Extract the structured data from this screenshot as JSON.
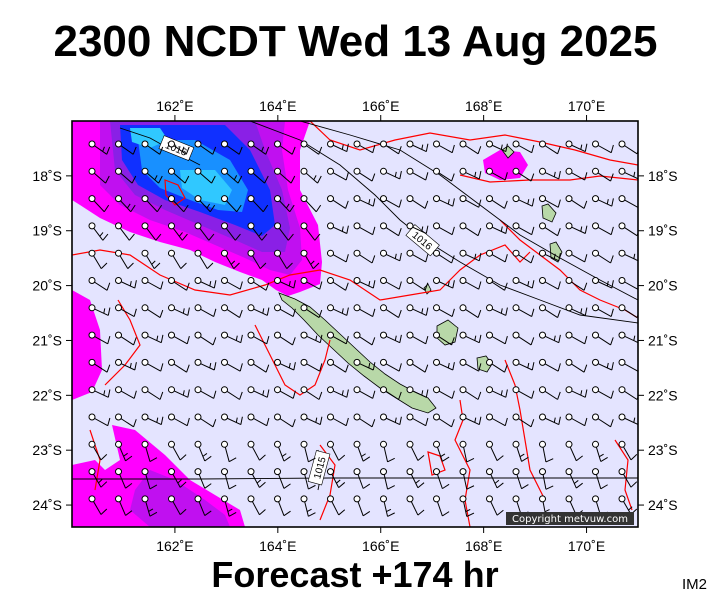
{
  "header": {
    "title": "2300 NCDT Wed 13 Aug 2025"
  },
  "footer": {
    "forecast": "Forecast +174 hr",
    "image_id": "IM2",
    "copyright": "Copyright metvuw.com"
  },
  "map": {
    "lon_range": [
      160.0,
      171.0
    ],
    "lat_range": [
      -24.4,
      -17.0
    ],
    "lon_ticks": [
      162,
      164,
      166,
      168,
      170
    ],
    "lat_ticks": [
      -18,
      -19,
      -20,
      -21,
      -22,
      -23,
      -24
    ],
    "lon_tick_labels": [
      "162˚E",
      "164˚E",
      "166˚E",
      "168˚E",
      "170˚E"
    ],
    "lat_tick_labels": [
      "18˚S",
      "19˚S",
      "20˚S",
      "21˚S",
      "22˚S",
      "23˚S",
      "24˚S"
    ],
    "isobar_labels": [
      "1016",
      "1016",
      "1015"
    ],
    "colors": {
      "background": "#e4e4ff",
      "rain_light": "#ff00ff",
      "rain_mid": "#8a20e6",
      "rain_heavy": "#1030ff",
      "rain_extreme": "#30c8ff",
      "rain_line": "#ff0000",
      "land": "#b8d8a8"
    }
  }
}
